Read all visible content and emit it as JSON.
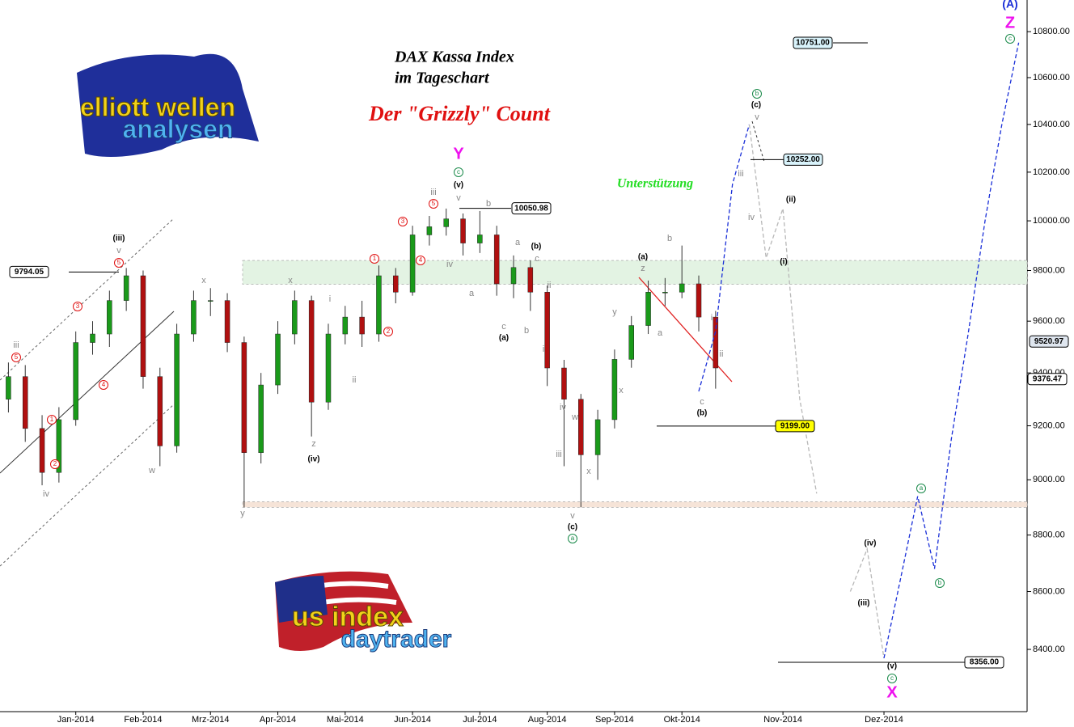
{
  "chart_data": {
    "type": "candlestick",
    "log": true,
    "title": "DAX Kassa Index",
    "subtitle": "im Tageschart",
    "headline": "Der \"Grizzly\" Count",
    "annotation": "Unterstützung",
    "logo_top": [
      "elliott wellen",
      "analysen"
    ],
    "logo_bottom": [
      "us index",
      "daytrader"
    ],
    "up_color": "#1a9a1a",
    "down_color": "#b01010",
    "categories": [
      null,
      null,
      null,
      null,
      "Jan-2014",
      null,
      null,
      null,
      "Feb-2014",
      null,
      null,
      null,
      "Mrz-2014",
      null,
      null,
      null,
      "Apr-2014",
      null,
      null,
      null,
      "Mai-2014",
      null,
      null,
      null,
      "Jun-2014",
      null,
      null,
      null,
      "Jul-2014",
      null,
      null,
      null,
      "Aug-2014",
      null,
      null,
      null,
      "Sep-2014",
      null,
      null,
      null,
      "Okt-2014",
      null,
      null,
      null,
      null,
      null,
      "Nov-2014",
      null,
      null,
      null,
      null,
      null,
      "Dez-2014",
      null,
      null,
      null,
      null,
      null,
      null,
      null,
      null
    ],
    "open": [
      9300,
      9386,
      9190,
      9027,
      9223,
      9517,
      9550,
      9681,
      9779,
      9386,
      9125,
      9550,
      9681,
      9681,
      9517,
      9100,
      9354,
      9550,
      9681,
      9289,
      9550,
      9616,
      9550,
      9779,
      9714,
      9943,
      9976,
      10008,
      9910,
      9943,
      9747,
      9812,
      9714,
      9419,
      9300,
      9092,
      9223,
      9452,
      9583,
      9714,
      9714,
      9747,
      9616,
      null,
      null,
      null,
      null,
      null,
      null,
      null,
      null,
      null,
      null,
      null,
      null,
      null,
      null,
      null,
      null,
      null,
      null
    ],
    "high": [
      9440,
      9430,
      9240,
      9270,
      9560,
      9600,
      9720,
      9810,
      9800,
      9420,
      9590,
      9720,
      9730,
      9710,
      9540,
      9400,
      9600,
      9720,
      9700,
      9590,
      9660,
      9680,
      9820,
      9810,
      9980,
      10020,
      10050,
      10030,
      10040,
      9980,
      9860,
      9840,
      9740,
      9450,
      9320,
      9260,
      9490,
      9620,
      9760,
      9770,
      9900,
      9780,
      9640,
      null,
      null,
      null,
      null,
      null,
      null,
      null,
      null,
      null,
      null,
      null,
      null,
      null,
      null,
      null,
      null,
      null,
      null
    ],
    "low": [
      9250,
      9140,
      8980,
      8990,
      9200,
      9470,
      9500,
      9640,
      9340,
      9050,
      9100,
      9520,
      9620,
      9480,
      8900,
      9060,
      9320,
      9510,
      9160,
      9260,
      9510,
      9500,
      9520,
      9670,
      9700,
      9900,
      9940,
      9860,
      9870,
      9700,
      9690,
      9640,
      9350,
      9050,
      8900,
      9000,
      9190,
      9420,
      9550,
      9660,
      9690,
      9560,
      9340,
      null,
      null,
      null,
      null,
      null,
      null,
      null,
      null,
      null,
      null,
      null,
      null,
      null,
      null,
      null,
      null,
      null,
      null
    ],
    "close": [
      9386,
      9190,
      9027,
      9223,
      9517,
      9550,
      9681,
      9779,
      9386,
      9125,
      9550,
      9681,
      9681,
      9517,
      9100,
      9354,
      9550,
      9681,
      9289,
      9550,
      9616,
      9550,
      9779,
      9714,
      9943,
      9976,
      10008,
      9910,
      9943,
      9747,
      9812,
      9714,
      9419,
      9300,
      9092,
      9223,
      9452,
      9583,
      9714,
      9714,
      9747,
      9616,
      9419,
      null,
      null,
      null,
      null,
      null,
      null,
      null,
      null,
      null,
      null,
      null,
      null,
      null,
      null,
      null,
      null,
      null,
      null
    ],
    "projections": [
      {
        "color": "#1a2fd8",
        "values": [
          null,
          null,
          null,
          null,
          null,
          null,
          null,
          null,
          null,
          null,
          null,
          null,
          null,
          null,
          null,
          null,
          null,
          null,
          null,
          null,
          null,
          null,
          null,
          null,
          null,
          null,
          null,
          null,
          null,
          null,
          null,
          null,
          null,
          null,
          null,
          null,
          null,
          null,
          null,
          null,
          null,
          9330,
          9560,
          10150,
          10400,
          null,
          null,
          null,
          null,
          null,
          null,
          null,
          null,
          null,
          null,
          null,
          null,
          null,
          null,
          null,
          null
        ]
      },
      {
        "color": "#b8b8b8",
        "values": [
          null,
          null,
          null,
          null,
          null,
          null,
          null,
          null,
          null,
          null,
          null,
          null,
          null,
          null,
          null,
          null,
          null,
          null,
          null,
          null,
          null,
          null,
          null,
          null,
          null,
          null,
          null,
          null,
          null,
          null,
          null,
          null,
          null,
          null,
          null,
          null,
          null,
          null,
          null,
          null,
          null,
          null,
          null,
          null,
          10400,
          9850,
          10050,
          9300,
          8950,
          null,
          8600,
          8750,
          8370,
          null,
          null,
          null,
          null,
          null,
          null,
          null,
          null
        ]
      },
      {
        "color": "#1a2fd8",
        "values": [
          null,
          null,
          null,
          null,
          null,
          null,
          null,
          null,
          null,
          null,
          null,
          null,
          null,
          null,
          null,
          null,
          null,
          null,
          null,
          null,
          null,
          null,
          null,
          null,
          null,
          null,
          null,
          null,
          null,
          null,
          null,
          null,
          null,
          null,
          null,
          null,
          null,
          null,
          null,
          null,
          null,
          null,
          null,
          null,
          null,
          null,
          null,
          null,
          null,
          null,
          null,
          null,
          8370,
          8650,
          8940,
          8680,
          9150,
          9550,
          10000,
          10400,
          10752
        ]
      }
    ],
    "zones": [
      {
        "from": 9745,
        "to": 9840,
        "color": "#e3f3e3"
      },
      {
        "from": 8900,
        "to": 8920,
        "color": "#f6e4d8"
      }
    ],
    "levels": [
      {
        "label": "10751.00",
        "value": 10751
      },
      {
        "label": "10252.00",
        "value": 10252
      },
      {
        "label": "10050.98",
        "value": 10050.98
      },
      {
        "label": "9794.05",
        "value": 9794.05
      },
      {
        "label": "9199.00",
        "value": 9199
      },
      {
        "label": "8356.00",
        "value": 8356
      },
      {
        "label": "9520.97",
        "value": 9520.97
      },
      {
        "label": "9376.47",
        "value": 9376.47
      }
    ],
    "wave_labels": [
      "Y",
      "c",
      "(v)",
      "iii",
      "5",
      "v",
      "b",
      "(iii)",
      "v",
      "5",
      "3",
      "4",
      "1",
      "2",
      "iii",
      "5",
      "iv",
      "w",
      "x",
      "y",
      "x",
      "z",
      "(iv)",
      "i",
      "ii",
      "1",
      "2",
      "3",
      "4",
      "iv",
      "a",
      "c",
      "(a)",
      "a",
      "(b)",
      "c",
      "b",
      "i",
      "ii",
      "iv",
      "w",
      "iii",
      "x",
      "v",
      "(c)",
      "a",
      "y",
      "x",
      "(a)",
      "z",
      "b",
      "a",
      "c",
      "(b)",
      "i",
      "ii",
      "iii",
      "iv",
      "b",
      "(c)",
      "v",
      "(ii)",
      "(i)",
      "(iv)",
      "(iii)",
      "(v)",
      "c",
      "X",
      "a",
      "b",
      "(A)",
      "Z",
      "c"
    ],
    "ylim": [
      8190,
      10940
    ],
    "yticks": [
      {
        "value": 8400,
        "label": "8400.00"
      },
      {
        "value": 8600,
        "label": "8600.00"
      },
      {
        "value": 8800,
        "label": "8800.00"
      },
      {
        "value": 9000,
        "label": "9000.00"
      },
      {
        "value": 9200,
        "label": "9200.00"
      },
      {
        "value": 9400,
        "label": "9400.00"
      },
      {
        "value": 9600,
        "label": "9600.00"
      },
      {
        "value": 9800,
        "label": "9800.00"
      },
      {
        "value": 10000,
        "label": "10000.00"
      },
      {
        "value": 10200,
        "label": "10200.00"
      },
      {
        "value": 10400,
        "label": "10400.00"
      },
      {
        "value": 10600,
        "label": "10600.00"
      },
      {
        "value": 10800,
        "label": "10800.00"
      }
    ]
  }
}
